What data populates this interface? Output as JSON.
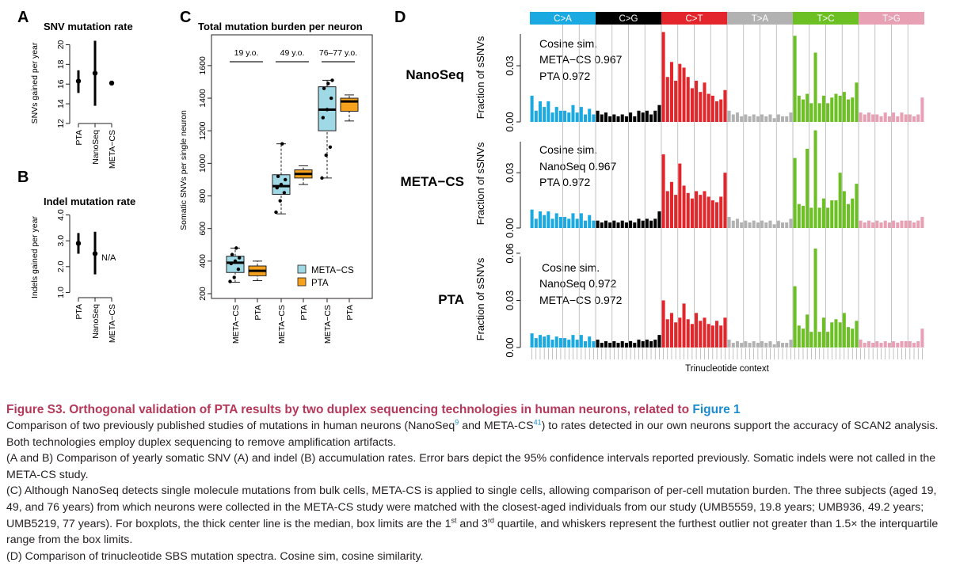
{
  "colors": {
    "ca": "#1ba9e1",
    "cg": "#000000",
    "ct": "#e3262c",
    "ta": "#b2b2b2",
    "tc": "#6cc024",
    "tg": "#e8a0b4",
    "meta_cs_box": "#9fd9e6",
    "pta_box": "#f6a21c",
    "caption_title": "#b5385a",
    "link": "#1a8ccf"
  },
  "panels": {
    "a": {
      "letter": "A",
      "title": "SNV mutation rate",
      "ylabel": "SNVs gained per year",
      "categories": [
        "PTA",
        "NanoSeq",
        "META−CS"
      ]
    },
    "b": {
      "letter": "B",
      "title": "Indel mutation rate",
      "ylabel": "Indels gained per year",
      "categories": [
        "PTA",
        "NanoSeq",
        "META−CS"
      ],
      "na_label": "N/A"
    },
    "c": {
      "letter": "C",
      "title": "Total mutation burden per neuron",
      "ylabel": "Somatic SNVs per single neuron",
      "age_groups": [
        "19 y.o.",
        "49 y.o.",
        "76–77 y.o."
      ],
      "categories": [
        "META−CS",
        "PTA",
        "META−CS",
        "PTA",
        "META−CS",
        "PTA"
      ],
      "legend": [
        "META−CS",
        "PTA"
      ]
    },
    "d": {
      "letter": "D",
      "xlabel": "Trinucleotide context",
      "ylabel": "Fraction of sSNVs",
      "mutation_types": [
        "C>A",
        "C>G",
        "C>T",
        "T>A",
        "T>C",
        "T>G"
      ],
      "rows": [
        {
          "name": "NanoSeq",
          "sim_title": "Cosine sim.",
          "sim_lines": [
            "META−CS 0.967",
            "PTA 0.972"
          ]
        },
        {
          "name": "META−CS",
          "sim_title": "Cosine sim.",
          "sim_lines": [
            "NanoSeq 0.967",
            "PTA 0.972"
          ]
        },
        {
          "name": "PTA",
          "sim_title": "Cosine sim.",
          "sim_lines": [
            "NanoSeq 0.972",
            "META−CS 0.972"
          ]
        }
      ]
    }
  },
  "chart_data": [
    {
      "panel": "A",
      "type": "scatter",
      "title": "SNV mutation rate",
      "xlabel": "",
      "ylabel": "SNVs gained per year",
      "categories": [
        "PTA",
        "NanoSeq",
        "META−CS"
      ],
      "estimate": [
        16.3,
        17.1,
        16.1
      ],
      "ci_low": [
        15.1,
        13.8,
        null
      ],
      "ci_high": [
        17.4,
        20.4,
        null
      ],
      "ylim": [
        12,
        21
      ],
      "yticks": [
        12,
        14,
        16,
        18,
        20
      ]
    },
    {
      "panel": "B",
      "type": "scatter",
      "title": "Indel mutation rate",
      "xlabel": "",
      "ylabel": "Indels gained per year",
      "categories": [
        "PTA",
        "NanoSeq",
        "META−CS"
      ],
      "estimate": [
        2.9,
        2.5,
        null
      ],
      "ci_low": [
        2.5,
        1.7
      ],
      "ci_high": [
        3.3,
        3.35
      ],
      "ylim": [
        0.8,
        4.2
      ],
      "yticks": [
        1.0,
        2.0,
        3.0,
        4.0
      ],
      "yticklabels": [
        "1.0",
        "2.0",
        "3.0",
        "4.0"
      ]
    },
    {
      "panel": "C",
      "type": "box",
      "title": "Total mutation burden per neuron",
      "xlabel": "",
      "ylabel": "Somatic SNVs per single neuron",
      "categories": [
        "META−CS",
        "PTA",
        "META−CS",
        "PTA",
        "META−CS",
        "PTA"
      ],
      "groups": [
        "19 y.o.",
        "49 y.o.",
        "76–77 y.o."
      ],
      "ylim": [
        200,
        1750
      ],
      "yticks": [
        200,
        400,
        600,
        800,
        1000,
        1200,
        1400,
        1600
      ],
      "series": [
        {
          "name": "META−CS",
          "boxes": [
            {
              "group": "19 y.o.",
              "whisker_low": 270,
              "q1": 330,
              "median": 390,
              "q3": 430,
              "whisker_high": 480,
              "points": [
                275,
                300,
                350,
                385,
                400,
                420,
                440,
                480
              ]
            },
            {
              "group": "49 y.o.",
              "whisker_low": 690,
              "q1": 810,
              "median": 860,
              "q3": 930,
              "whisker_high": 1120,
              "points": [
                700,
                770,
                820,
                850,
                870,
                900,
                920,
                1120
              ]
            },
            {
              "group": "76–77 y.o.",
              "whisker_low": 910,
              "q1": 1200,
              "median": 1330,
              "q3": 1470,
              "whisker_high": 1510,
              "points": [
                910,
                1050,
                1100,
                1280,
                1330,
                1400,
                1460,
                1490,
                1510
              ]
            }
          ]
        },
        {
          "name": "PTA",
          "boxes": [
            {
              "group": "19 y.o.",
              "whisker_low": 280,
              "q1": 310,
              "median": 340,
              "q3": 370,
              "whisker_high": 400,
              "points": []
            },
            {
              "group": "49 y.o.",
              "whisker_low": 870,
              "q1": 910,
              "median": 935,
              "q3": 960,
              "whisker_high": 985,
              "points": []
            },
            {
              "group": "76–77 y.o.",
              "whisker_low": 1260,
              "q1": 1320,
              "median": 1380,
              "q3": 1400,
              "whisker_high": 1420,
              "points": []
            }
          ]
        }
      ],
      "legend": "bottom-right"
    },
    {
      "panel": "D",
      "type": "bar",
      "xlabel": "Trinucleotide context",
      "ylabel": "Fraction of sSNVs",
      "mutation_types": [
        "C>A",
        "C>G",
        "C>T",
        "T>A",
        "T>C",
        "T>G"
      ],
      "bars_per_type": 16,
      "series": [
        {
          "name": "NanoSeq",
          "ylim": [
            0,
            0.052
          ],
          "yticks": [
            0.0,
            0.03
          ],
          "yticklabels": [
            "0.00",
            "0.03"
          ],
          "values": [
            0.014,
            0.006,
            0.011,
            0.008,
            0.011,
            0.005,
            0.008,
            0.006,
            0.006,
            0.005,
            0.009,
            0.005,
            0.008,
            0.004,
            0.007,
            0.004,
            0.006,
            0.004,
            0.005,
            0.003,
            0.004,
            0.003,
            0.004,
            0.003,
            0.005,
            0.003,
            0.006,
            0.005,
            0.006,
            0.004,
            0.006,
            0.009,
            0.048,
            0.024,
            0.032,
            0.022,
            0.031,
            0.029,
            0.024,
            0.018,
            0.022,
            0.016,
            0.021,
            0.015,
            0.014,
            0.011,
            0.012,
            0.017,
            0.006,
            0.004,
            0.005,
            0.003,
            0.004,
            0.003,
            0.004,
            0.003,
            0.004,
            0.003,
            0.004,
            0.002,
            0.004,
            0.003,
            0.003,
            0.005,
            0.046,
            0.014,
            0.012,
            0.015,
            0.01,
            0.037,
            0.01,
            0.014,
            0.01,
            0.013,
            0.015,
            0.014,
            0.016,
            0.012,
            0.013,
            0.021,
            0.005,
            0.004,
            0.005,
            0.004,
            0.004,
            0.003,
            0.005,
            0.003,
            0.005,
            0.003,
            0.005,
            0.004,
            0.004,
            0.003,
            0.004,
            0.013
          ]
        },
        {
          "name": "META−CS",
          "ylim": [
            0,
            0.052
          ],
          "yticks": [
            0.0,
            0.03
          ],
          "yticklabels": [
            "0.00",
            "0.03"
          ],
          "values": [
            0.01,
            0.005,
            0.009,
            0.007,
            0.009,
            0.005,
            0.008,
            0.006,
            0.006,
            0.005,
            0.008,
            0.005,
            0.008,
            0.004,
            0.007,
            0.004,
            0.004,
            0.003,
            0.004,
            0.003,
            0.004,
            0.003,
            0.004,
            0.003,
            0.004,
            0.003,
            0.005,
            0.004,
            0.005,
            0.004,
            0.005,
            0.009,
            0.04,
            0.02,
            0.025,
            0.018,
            0.035,
            0.023,
            0.019,
            0.016,
            0.02,
            0.018,
            0.02,
            0.017,
            0.015,
            0.014,
            0.017,
            0.03,
            0.006,
            0.004,
            0.005,
            0.003,
            0.004,
            0.003,
            0.004,
            0.003,
            0.004,
            0.003,
            0.004,
            0.002,
            0.004,
            0.003,
            0.003,
            0.005,
            0.038,
            0.013,
            0.012,
            0.043,
            0.011,
            0.053,
            0.011,
            0.016,
            0.011,
            0.015,
            0.015,
            0.03,
            0.02,
            0.013,
            0.016,
            0.024,
            0.004,
            0.003,
            0.004,
            0.003,
            0.004,
            0.003,
            0.004,
            0.003,
            0.004,
            0.003,
            0.004,
            0.004,
            0.004,
            0.003,
            0.004,
            0.006
          ]
        },
        {
          "name": "PTA",
          "ylim": [
            0,
            0.064
          ],
          "yticks": [
            0.0,
            0.03,
            0.06
          ],
          "yticklabels": [
            "0.00",
            "0.03",
            "0.06"
          ],
          "values": [
            0.009,
            0.006,
            0.008,
            0.007,
            0.008,
            0.005,
            0.007,
            0.006,
            0.006,
            0.005,
            0.008,
            0.005,
            0.008,
            0.004,
            0.007,
            0.004,
            0.005,
            0.003,
            0.004,
            0.003,
            0.004,
            0.003,
            0.004,
            0.003,
            0.004,
            0.003,
            0.005,
            0.004,
            0.005,
            0.004,
            0.005,
            0.008,
            0.03,
            0.018,
            0.022,
            0.016,
            0.019,
            0.028,
            0.018,
            0.015,
            0.022,
            0.017,
            0.019,
            0.015,
            0.014,
            0.017,
            0.014,
            0.019,
            0.005,
            0.003,
            0.004,
            0.003,
            0.004,
            0.003,
            0.004,
            0.003,
            0.004,
            0.003,
            0.004,
            0.002,
            0.004,
            0.003,
            0.003,
            0.005,
            0.039,
            0.014,
            0.012,
            0.021,
            0.01,
            0.063,
            0.01,
            0.019,
            0.01,
            0.016,
            0.018,
            0.016,
            0.022,
            0.013,
            0.012,
            0.017,
            0.005,
            0.003,
            0.004,
            0.003,
            0.004,
            0.003,
            0.004,
            0.003,
            0.004,
            0.003,
            0.004,
            0.004,
            0.004,
            0.003,
            0.004,
            0.012
          ]
        }
      ]
    }
  ],
  "caption": {
    "title_main": "Figure S3.  Orthogonal validation of PTA results by two duplex sequencing technologies in human neurons, related to ",
    "title_link": "Figure 1",
    "p1_a": "Comparison of two previously published studies of mutations in human neurons (NanoSeq",
    "p1_ref1": "9",
    "p1_b": " and META-CS",
    "p1_ref2": "41",
    "p1_c": ") to rates detected in our own neurons support the accuracy of SCAN2 analysis. Both technologies employ duplex sequencing to remove amplification artifacts.",
    "p2": "(A and B) Comparison of yearly somatic SNV (A) and indel (B) accumulation rates. Error bars depict the 95% confidence intervals reported previously. Somatic indels were not called in the META-CS study.",
    "p3_a": "(C) Although NanoSeq detects single molecule mutations from bulk cells, META-CS is applied to single cells, allowing comparison of per-cell mutation burden. The three subjects (aged 19, 49, and 76 years) from which neurons were collected in the META-CS study were matched with the closest-aged individuals from our study (UMB5559, 19.8 years; UMB936, 49.2 years; UMB5219, 77 years). For boxplots, the thick center line is the median, box limits are the 1",
    "p3_sup1": "st",
    "p3_b": " and 3",
    "p3_sup2": "rd",
    "p3_c": " quartile, and whiskers represent the furthest outlier not greater than 1.5× the interquartile range from the box limits.",
    "p4": "(D) Comparison of trinucleotide SBS mutation spectra. Cosine sim, cosine similarity."
  }
}
